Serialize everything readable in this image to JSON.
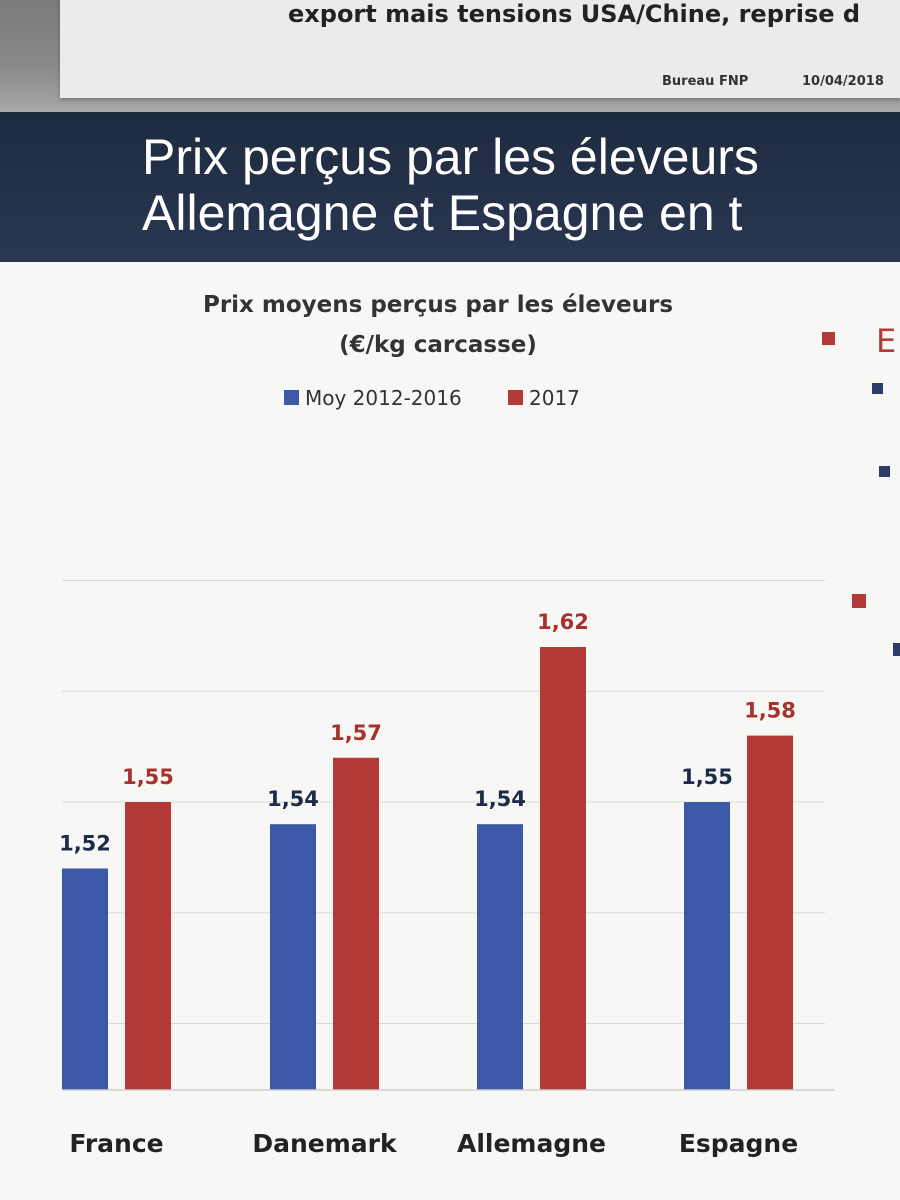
{
  "header": {
    "subtitle": "export mais tensions USA/Chine, reprise d",
    "author": "Bureau FNP",
    "date": "10/04/2018"
  },
  "slide": {
    "title_line1": "Prix perçus par les éleveurs",
    "title_line2": "Allemagne et Espagne en t"
  },
  "side_legend": {
    "letter": "E"
  },
  "colors": {
    "series1": "#3c59a8",
    "series2": "#b33a36",
    "label1": "#1e2a4a",
    "label2": "#a8302d"
  },
  "chart_data": {
    "type": "bar",
    "title": "Prix moyens perçus par les éleveurs",
    "subtitle": "(€/kg carcasse)",
    "categories": [
      "France",
      "Danemark",
      "Allemagne",
      "Espagne"
    ],
    "series": [
      {
        "name": "Moy 2012-2016",
        "values": [
          1.52,
          1.54,
          1.54,
          1.55
        ],
        "labels": [
          "1,52",
          "1,54",
          "1,54",
          "1,55"
        ]
      },
      {
        "name": "2017",
        "values": [
          1.55,
          1.57,
          1.62,
          1.58
        ],
        "labels": [
          "1,55",
          "1,57",
          "1,62",
          "1,58"
        ]
      }
    ],
    "ylim": [
      1.42,
      1.67
    ],
    "grid": true,
    "legend": "top"
  }
}
